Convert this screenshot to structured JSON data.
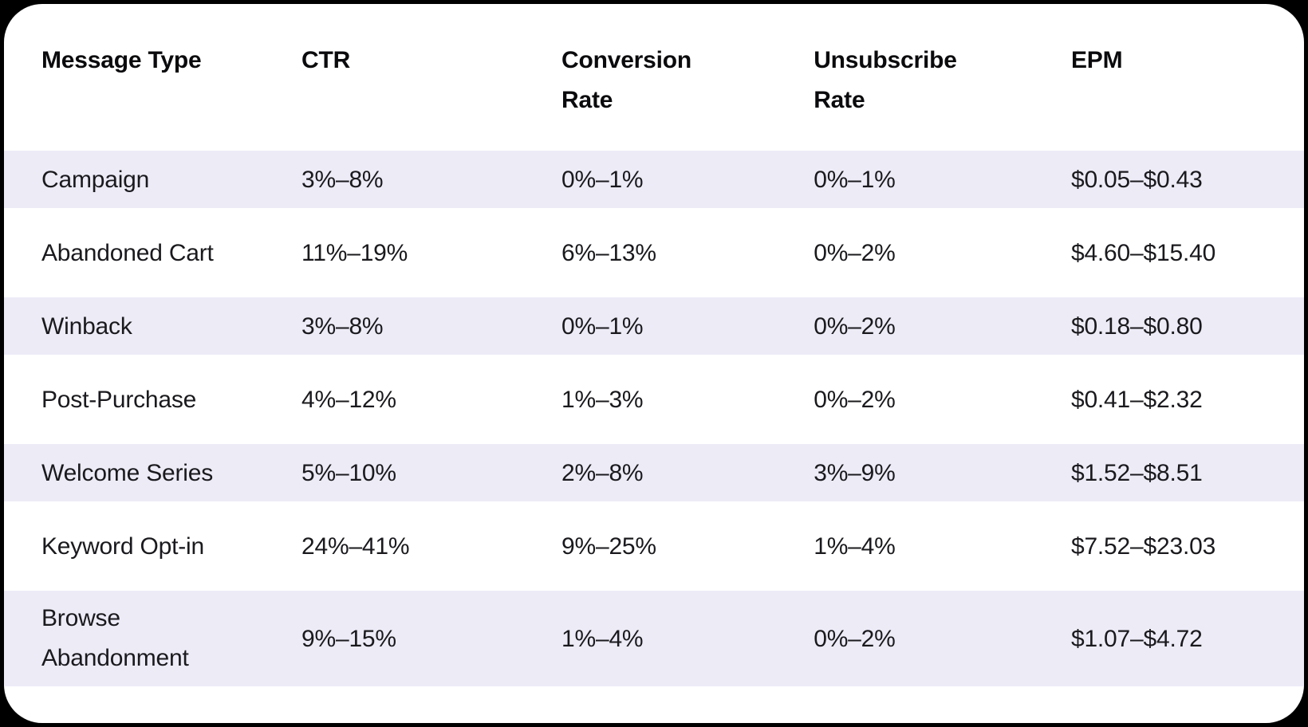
{
  "chart_data": {
    "type": "table",
    "columns": [
      "Message Type",
      "CTR",
      "Conversion Rate",
      "Unsubscribe Rate",
      "EPM"
    ],
    "rows": [
      [
        "Campaign",
        "3%–8%",
        "0%–1%",
        "0%–1%",
        "$0.05–$0.43"
      ],
      [
        "Abandoned Cart",
        "11%–19%",
        "6%–13%",
        "0%–2%",
        "$4.60–$15.40"
      ],
      [
        "Winback",
        "3%–8%",
        "0%–1%",
        "0%–2%",
        "$0.18–$0.80"
      ],
      [
        "Post-Purchase",
        "4%–12%",
        "1%–3%",
        "0%–2%",
        "$0.41–$2.32"
      ],
      [
        "Welcome Series",
        "5%–10%",
        "2%–8%",
        "3%–9%",
        "$1.52–$8.51"
      ],
      [
        "Keyword Opt-in",
        "24%–41%",
        "9%–25%",
        "1%–4%",
        "$7.52–$23.03"
      ],
      [
        "Browse Abandonment",
        "9%–15%",
        "1%–4%",
        "0%–2%",
        "$1.07–$4.72"
      ]
    ],
    "layout": {
      "striped_rows": "odd-data-rows",
      "legend": "none",
      "grid": "off"
    }
  },
  "colors": {
    "page_background": "#000000",
    "card_background": "#ffffff",
    "stripe": "#edebf6",
    "header_text": "#0b0b0e",
    "cell_text": "#1a1a1e"
  }
}
